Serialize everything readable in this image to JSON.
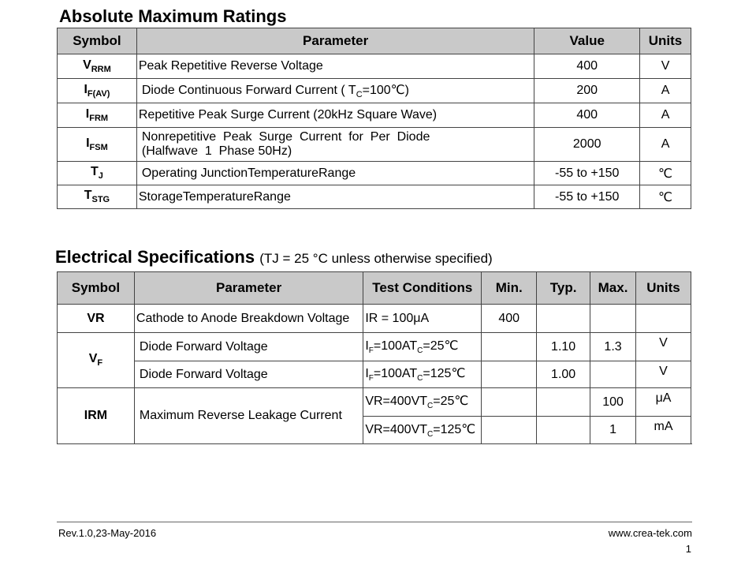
{
  "absolute": {
    "title": "Absolute Maximum Ratings",
    "headers": [
      "Symbol",
      "Parameter",
      "Value",
      "Units"
    ],
    "rows": [
      {
        "sym": "V",
        "sub": "RRM",
        "param": "Peak Repetitive Reverse Voltage",
        "value": "400",
        "unit": "V"
      },
      {
        "sym": "I",
        "sub": "F(AV)",
        "param_pre": "Diode Continuous Forward Current ( T",
        "param_sub": "C",
        "param_post": "=100℃)",
        "value": "200",
        "unit": "A"
      },
      {
        "sym": "I",
        "sub": "FRM",
        "param": "Repetitive Peak Surge Current (20kHz Square Wave)",
        "value": "400",
        "unit": "A"
      },
      {
        "sym": "I",
        "sub": "FSM",
        "param_line1": "Nonrepetitive  Peak  Surge  Current  for  Per  Diode",
        "param_line2": "(Halfwave  1  Phase 50Hz)",
        "value": "2000",
        "unit": "A"
      },
      {
        "sym": "T",
        "sub": "J",
        "param": "Operating JunctionTemperatureRange",
        "value": "-55 to +150",
        "unit": "℃"
      },
      {
        "sym": "T",
        "sub": "STG",
        "param": "StorageTemperatureRange",
        "value": "-55 to +150",
        "unit": "℃"
      }
    ]
  },
  "electrical": {
    "title": "Electrical Specifications",
    "note": "(TJ = 25 °C unless otherwise specified)",
    "headers": [
      "Symbol",
      "Parameter",
      "Test Conditions",
      "Min.",
      "Typ.",
      "Max.",
      "Units"
    ],
    "vr": {
      "sym": "VR",
      "param": "Cathode to Anode Breakdown Voltage",
      "cond": "IR = 100μA",
      "min": "400"
    },
    "vf": {
      "sym": "V",
      "sub": "F",
      "r1": {
        "param": "Diode Forward Voltage",
        "cond_a": "I",
        "cond_a_sub": "F",
        "cond_b": "=100AT",
        "cond_b_sub": "C",
        "cond_c": "=25℃",
        "typ": "1.10",
        "max": "1.3",
        "unit": "V"
      },
      "r2": {
        "param": "Diode Forward Voltage",
        "cond_a": "I",
        "cond_a_sub": "F",
        "cond_b": "=100AT",
        "cond_b_sub": "C",
        "cond_c": "=125℃",
        "typ": "1.00",
        "unit": "V"
      }
    },
    "irm": {
      "sym": "IRM",
      "param": "Maximum Reverse Leakage Current",
      "r1": {
        "cond_a": "VR=400VT",
        "cond_sub": "C",
        "cond_b": "=25℃",
        "max": "100",
        "unit": "μA"
      },
      "r2": {
        "cond_a": "VR=400VT",
        "cond_sub": "C",
        "cond_b": "=125℃",
        "max": "1",
        "unit": "mA"
      }
    }
  },
  "footer": {
    "rev": "Rev.1.0,23-May-2016",
    "url": "www.crea-tek.com",
    "page": "1"
  }
}
